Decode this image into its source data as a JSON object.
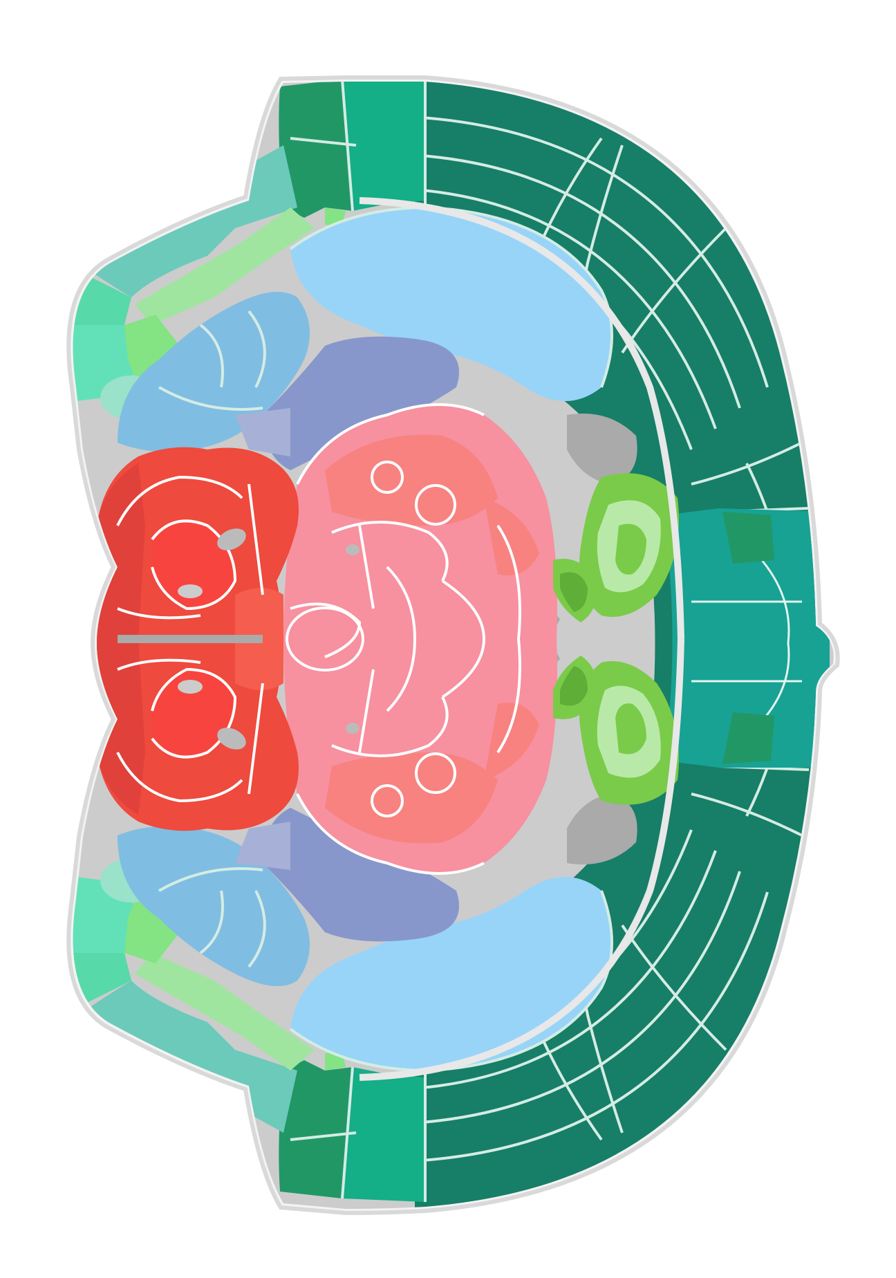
{
  "colors": {
    "background": "#ffffff",
    "outline": "#d9d9d9",
    "cortex_dark": "#177e67",
    "cortex_mid": "#229766",
    "cortex_bright": "#14ae87",
    "cortex_teal": "#17a294",
    "cortex_pale": "#6ccaba",
    "cortex_light": "#58d9a9",
    "cortex_lighter": "#62e1b9",
    "olfactory_green": "#84e383",
    "olfactory_pale": "#9fe59f",
    "hippocampal_pale": "#9ae2c9",
    "striatum_light": "#98d4f8",
    "striatum_mid": "#80bde2",
    "pallidum": "#8797cb",
    "thalamus_pink": "#f7909f",
    "thalamus_salmon": "#f78280",
    "hypothalamus_red": "#ee4a3d",
    "hypothalamus_bright": "#f8443f",
    "fiber_tracts": "#cccccc",
    "ventricle_gray": "#aaaaaa",
    "hippocampus_green": "#7acb49",
    "hippocampus_pale": "#b9e9a8"
  },
  "icons": {
    "atlas_section": "brain-coronal-section-icon"
  }
}
